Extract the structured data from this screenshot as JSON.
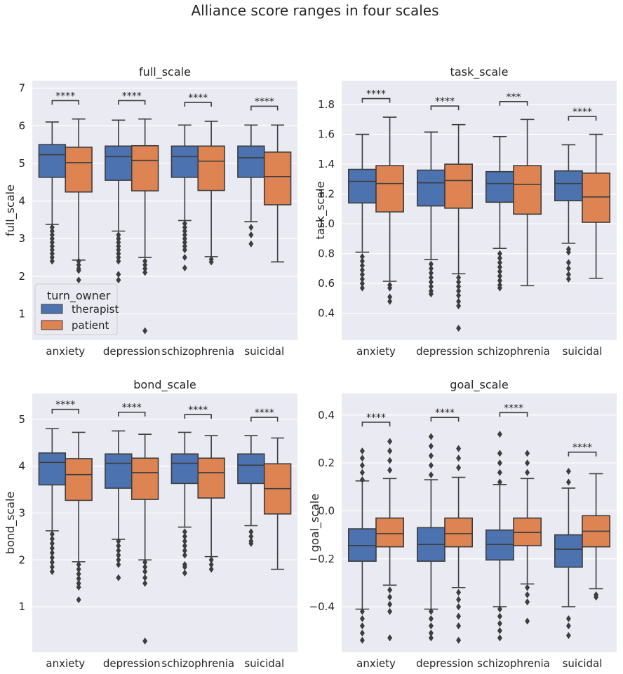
{
  "figure": {
    "title": "Alliance score ranges in four scales"
  },
  "legend": {
    "title": "turn_owner",
    "entries": [
      {
        "label": "therapist",
        "color": "#4c72b0"
      },
      {
        "label": "patient",
        "color": "#dd8452"
      }
    ]
  },
  "chart_data": [
    {
      "type": "box",
      "title": "full_scale",
      "ylabel": "full_scale",
      "xlabel": "",
      "categories": [
        "anxiety",
        "depression",
        "schizophrenia",
        "suicidal"
      ],
      "ylim": [
        0.3,
        7.2
      ],
      "yticks": [
        "1",
        "2",
        "3",
        "4",
        "5",
        "6",
        "7"
      ],
      "ytick_values": [
        1,
        2,
        3,
        4,
        5,
        6,
        7
      ],
      "grid": true,
      "legend": "lower-left",
      "series": [
        {
          "name": "therapist",
          "boxes": [
            {
              "whislo": 3.38,
              "q1": 4.63,
              "med": 5.23,
              "q3": 5.5,
              "whishi": 6.1,
              "fliers": [
                3.3,
                3.2,
                3.1,
                3.0,
                2.9,
                2.8,
                2.7,
                2.6,
                2.5,
                2.4
              ]
            },
            {
              "whislo": 3.2,
              "q1": 4.55,
              "med": 5.18,
              "q3": 5.46,
              "whishi": 6.15,
              "fliers": [
                3.1,
                3.0,
                2.9,
                2.8,
                2.7,
                2.6,
                2.5,
                2.4,
                2.05,
                1.9
              ]
            },
            {
              "whislo": 3.48,
              "q1": 4.63,
              "med": 5.18,
              "q3": 5.46,
              "whishi": 6.02,
              "fliers": [
                3.4,
                3.3,
                3.2,
                3.1,
                3.0,
                2.9,
                2.8,
                2.7,
                2.5,
                2.22
              ]
            },
            {
              "whislo": 3.45,
              "q1": 4.63,
              "med": 5.15,
              "q3": 5.46,
              "whishi": 6.02,
              "fliers": [
                3.3,
                3.1,
                2.86
              ]
            }
          ]
        },
        {
          "name": "patient",
          "boxes": [
            {
              "whislo": 2.43,
              "q1": 4.24,
              "med": 5.02,
              "q3": 5.43,
              "whishi": 6.18,
              "fliers": [
                2.4,
                2.3,
                2.2,
                2.15,
                1.9
              ]
            },
            {
              "whislo": 2.5,
              "q1": 4.27,
              "med": 5.08,
              "q3": 5.47,
              "whishi": 6.18,
              "fliers": [
                2.4,
                2.3,
                2.2,
                2.1,
                0.55
              ]
            },
            {
              "whislo": 2.52,
              "q1": 4.28,
              "med": 5.06,
              "q3": 5.46,
              "whishi": 6.12,
              "fliers": [
                2.45,
                2.38
              ]
            },
            {
              "whislo": 2.38,
              "q1": 3.9,
              "med": 4.65,
              "q3": 5.3,
              "whishi": 6.02,
              "fliers": []
            }
          ]
        }
      ],
      "annotations": [
        {
          "text": "****",
          "y": 6.67
        },
        {
          "text": "****",
          "y": 6.67
        },
        {
          "text": "****",
          "y": 6.62
        },
        {
          "text": "****",
          "y": 6.52
        }
      ]
    },
    {
      "type": "box",
      "title": "task_scale",
      "ylabel": "task_scale",
      "xlabel": "",
      "categories": [
        "anxiety",
        "depression",
        "schizophrenia",
        "suicidal"
      ],
      "ylim": [
        0.22,
        1.96
      ],
      "yticks": [
        "0.4",
        "0.6",
        "0.8",
        "1.0",
        "1.2",
        "1.4",
        "1.6",
        "1.8"
      ],
      "ytick_values": [
        0.4,
        0.6,
        0.8,
        1.0,
        1.2,
        1.4,
        1.6,
        1.8
      ],
      "grid": true,
      "series": [
        {
          "name": "therapist",
          "boxes": [
            {
              "whislo": 0.81,
              "q1": 1.14,
              "med": 1.285,
              "q3": 1.365,
              "whishi": 1.6,
              "fliers": [
                0.78,
                0.75,
                0.72,
                0.69,
                0.66,
                0.63,
                0.6,
                0.57
              ]
            },
            {
              "whislo": 0.76,
              "q1": 1.12,
              "med": 1.275,
              "q3": 1.36,
              "whishi": 1.615,
              "fliers": [
                0.73,
                0.7,
                0.67,
                0.64,
                0.61,
                0.58,
                0.55,
                0.53
              ]
            },
            {
              "whislo": 0.835,
              "q1": 1.145,
              "med": 1.27,
              "q3": 1.35,
              "whishi": 1.585,
              "fliers": [
                0.8,
                0.77,
                0.74,
                0.71,
                0.68,
                0.65,
                0.62,
                0.59,
                0.57
              ]
            },
            {
              "whislo": 0.87,
              "q1": 1.155,
              "med": 1.27,
              "q3": 1.355,
              "whishi": 1.53,
              "fliers": [
                0.83,
                0.81,
                0.74,
                0.7,
                0.66,
                0.63
              ]
            }
          ]
        },
        {
          "name": "patient",
          "boxes": [
            {
              "whislo": 0.615,
              "q1": 1.08,
              "med": 1.27,
              "q3": 1.39,
              "whishi": 1.715,
              "fliers": [
                0.59,
                0.57,
                0.51,
                0.48
              ]
            },
            {
              "whislo": 0.665,
              "q1": 1.105,
              "med": 1.29,
              "q3": 1.4,
              "whishi": 1.665,
              "fliers": [
                0.64,
                0.61,
                0.58,
                0.55,
                0.52,
                0.48,
                0.45,
                0.3
              ]
            },
            {
              "whislo": 0.585,
              "q1": 1.065,
              "med": 1.265,
              "q3": 1.39,
              "whishi": 1.7,
              "fliers": []
            },
            {
              "whislo": 0.635,
              "q1": 1.01,
              "med": 1.18,
              "q3": 1.34,
              "whishi": 1.6,
              "fliers": []
            }
          ]
        }
      ],
      "annotations": [
        {
          "text": "****",
          "y": 1.84
        },
        {
          "text": "****",
          "y": 1.79
        },
        {
          "text": "***",
          "y": 1.82
        },
        {
          "text": "****",
          "y": 1.72
        }
      ]
    },
    {
      "type": "box",
      "title": "bond_scale",
      "ylabel": "bond_scale",
      "xlabel": "",
      "categories": [
        "anxiety",
        "depression",
        "schizophrenia",
        "suicidal"
      ],
      "ylim": [
        0.03,
        5.55
      ],
      "yticks": [
        "1",
        "2",
        "3",
        "4",
        "5"
      ],
      "ytick_values": [
        1,
        2,
        3,
        4,
        5
      ],
      "grid": true,
      "series": [
        {
          "name": "therapist",
          "boxes": [
            {
              "whislo": 2.62,
              "q1": 3.6,
              "med": 4.08,
              "q3": 4.28,
              "whishi": 4.8,
              "fliers": [
                2.55,
                2.45,
                2.35,
                2.25,
                2.15,
                2.05,
                1.95,
                1.85,
                1.75
              ]
            },
            {
              "whislo": 2.44,
              "q1": 3.53,
              "med": 4.06,
              "q3": 4.26,
              "whishi": 4.75,
              "fliers": [
                2.4,
                2.3,
                2.2,
                2.1,
                2.0,
                1.9,
                1.62
              ]
            },
            {
              "whislo": 2.7,
              "q1": 3.63,
              "med": 4.06,
              "q3": 4.26,
              "whishi": 4.72,
              "fliers": [
                2.6,
                2.5,
                2.4,
                2.3,
                2.2,
                2.1,
                1.9,
                1.85,
                1.72
              ]
            },
            {
              "whislo": 2.73,
              "q1": 3.63,
              "med": 4.02,
              "q3": 4.26,
              "whishi": 4.65,
              "fliers": [
                2.6,
                2.5,
                2.4,
                2.35
              ]
            }
          ]
        },
        {
          "name": "patient",
          "boxes": [
            {
              "whislo": 1.96,
              "q1": 3.27,
              "med": 3.82,
              "q3": 4.16,
              "whishi": 4.72,
              "fliers": [
                1.9,
                1.8,
                1.7,
                1.6,
                1.5,
                1.42,
                1.15
              ]
            },
            {
              "whislo": 2.0,
              "q1": 3.29,
              "med": 3.86,
              "q3": 4.17,
              "whishi": 4.68,
              "fliers": [
                1.95,
                1.85,
                1.75,
                1.62,
                1.5,
                0.27
              ]
            },
            {
              "whislo": 2.07,
              "q1": 3.32,
              "med": 3.86,
              "q3": 4.17,
              "whishi": 4.65,
              "fliers": [
                2.0,
                1.9,
                1.8
              ]
            },
            {
              "whislo": 1.8,
              "q1": 2.98,
              "med": 3.52,
              "q3": 4.05,
              "whishi": 4.6,
              "fliers": []
            }
          ]
        }
      ],
      "annotations": [
        {
          "text": "****",
          "y": 5.21
        },
        {
          "text": "****",
          "y": 5.15
        },
        {
          "text": "****",
          "y": 5.1
        },
        {
          "text": "****",
          "y": 5.04
        }
      ]
    },
    {
      "type": "box",
      "title": "goal_scale",
      "ylabel": "goal_scale",
      "xlabel": "",
      "categories": [
        "anxiety",
        "depression",
        "schizophrenia",
        "suicidal"
      ],
      "ylim": [
        -0.59,
        0.49
      ],
      "yticks": [
        "−0.4",
        "−0.2",
        "0.0",
        "0.2",
        "0.4"
      ],
      "ytick_values": [
        -0.4,
        -0.2,
        0.0,
        0.2,
        0.4
      ],
      "grid": true,
      "series": [
        {
          "name": "therapist",
          "boxes": [
            {
              "whislo": -0.41,
              "q1": -0.21,
              "med": -0.145,
              "q3": -0.075,
              "whishi": 0.125,
              "fliers": [
                0.25,
                0.22,
                0.19,
                0.16,
                0.13,
                -0.42,
                -0.45,
                -0.48,
                -0.51,
                -0.54
              ]
            },
            {
              "whislo": -0.41,
              "q1": -0.21,
              "med": -0.14,
              "q3": -0.07,
              "whishi": 0.13,
              "fliers": [
                0.31,
                0.27,
                0.23,
                0.19,
                0.15,
                -0.42,
                -0.45,
                -0.48,
                -0.51,
                -0.53
              ]
            },
            {
              "whislo": -0.4,
              "q1": -0.205,
              "med": -0.14,
              "q3": -0.08,
              "whishi": 0.11,
              "fliers": [
                0.32,
                0.24,
                0.2,
                0.16,
                0.12,
                -0.41,
                -0.44,
                -0.47,
                -0.5,
                -0.53
              ]
            },
            {
              "whislo": -0.4,
              "q1": -0.235,
              "med": -0.16,
              "q3": -0.1,
              "whishi": 0.095,
              "fliers": [
                0.165,
                0.12,
                -0.45,
                -0.48,
                -0.52
              ]
            }
          ]
        },
        {
          "name": "patient",
          "boxes": [
            {
              "whislo": -0.31,
              "q1": -0.15,
              "med": -0.095,
              "q3": -0.03,
              "whishi": 0.135,
              "fliers": [
                0.29,
                0.25,
                0.21,
                0.17,
                -0.33,
                -0.36,
                -0.39,
                -0.42,
                -0.53
              ]
            },
            {
              "whislo": -0.32,
              "q1": -0.15,
              "med": -0.095,
              "q3": -0.03,
              "whishi": 0.14,
              "fliers": [
                0.26,
                0.22,
                0.18,
                -0.34,
                -0.37,
                -0.4,
                -0.44,
                -0.48,
                -0.54
              ]
            },
            {
              "whislo": -0.305,
              "q1": -0.145,
              "med": -0.09,
              "q3": -0.03,
              "whishi": 0.135,
              "fliers": [
                0.24,
                0.2,
                0.16,
                -0.32,
                -0.35,
                -0.38,
                -0.46
              ]
            },
            {
              "whislo": -0.325,
              "q1": -0.15,
              "med": -0.085,
              "q3": -0.02,
              "whishi": 0.155,
              "fliers": [
                -0.35,
                -0.36
              ]
            }
          ]
        }
      ],
      "annotations": [
        {
          "text": "****",
          "y": 0.37
        },
        {
          "text": "****",
          "y": 0.39
        },
        {
          "text": "****",
          "y": 0.41
        },
        {
          "text": "****",
          "y": 0.245
        }
      ]
    }
  ]
}
